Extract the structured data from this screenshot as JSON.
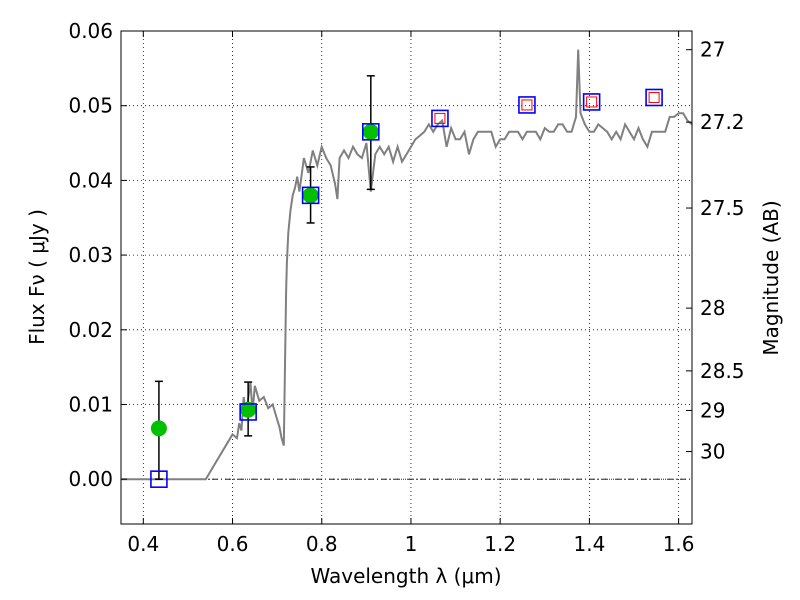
{
  "chart_data": {
    "type": "scatter",
    "title": "",
    "xlabel": "Wavelength  λ (μm)",
    "ylabel": "Flux  Fν  ( μJy )",
    "y2label": "Magnitude (AB)",
    "xlim": [
      0.35,
      1.63
    ],
    "ylim": [
      -0.006,
      0.06
    ],
    "grid": true,
    "x_ticks": [
      0.4,
      0.6,
      0.8,
      1.0,
      1.2,
      1.4,
      1.6
    ],
    "x_tick_labels": [
      "0.4",
      "0.6",
      "0.8",
      "1",
      "1.2",
      "1.4",
      "1.6"
    ],
    "y_ticks": [
      0.0,
      0.01,
      0.02,
      0.03,
      0.04,
      0.05,
      0.06
    ],
    "y_tick_labels": [
      "0.00",
      "0.01",
      "0.02",
      "0.03",
      "0.04",
      "0.05",
      "0.06"
    ],
    "y2_ticks": [
      {
        "label": "27",
        "flux": 0.0575
      },
      {
        "label": "27.2",
        "flux": 0.0478
      },
      {
        "label": "27.5",
        "flux": 0.0363
      },
      {
        "label": "28",
        "flux": 0.0229
      },
      {
        "label": "28.5",
        "flux": 0.0145
      },
      {
        "label": "29",
        "flux": 0.0092
      },
      {
        "label": "30",
        "flux": 0.0037
      }
    ],
    "series": [
      {
        "kind": "line",
        "color": "#808080",
        "x": [
          0.35,
          0.54,
          0.56,
          0.58,
          0.59,
          0.6,
          0.61,
          0.615,
          0.62,
          0.625,
          0.63,
          0.64,
          0.645,
          0.65,
          0.66,
          0.67,
          0.68,
          0.69,
          0.7,
          0.705,
          0.71,
          0.715,
          0.72,
          0.722,
          0.725,
          0.73,
          0.735,
          0.74,
          0.745,
          0.75,
          0.76,
          0.77,
          0.78,
          0.79,
          0.8,
          0.81,
          0.82,
          0.83,
          0.835,
          0.84,
          0.85,
          0.86,
          0.87,
          0.88,
          0.89,
          0.9,
          0.91,
          0.92,
          0.93,
          0.94,
          0.95,
          0.96,
          0.97,
          0.98,
          0.99,
          1.0,
          1.01,
          1.02,
          1.03,
          1.04,
          1.05,
          1.06,
          1.07,
          1.08,
          1.09,
          1.1,
          1.11,
          1.12,
          1.13,
          1.14,
          1.15,
          1.16,
          1.17,
          1.18,
          1.19,
          1.2,
          1.21,
          1.22,
          1.23,
          1.24,
          1.25,
          1.26,
          1.27,
          1.28,
          1.29,
          1.3,
          1.31,
          1.32,
          1.33,
          1.34,
          1.35,
          1.36,
          1.37,
          1.375,
          1.38,
          1.39,
          1.4,
          1.41,
          1.42,
          1.43,
          1.44,
          1.45,
          1.46,
          1.47,
          1.48,
          1.49,
          1.5,
          1.51,
          1.52,
          1.53,
          1.54,
          1.55,
          1.56,
          1.57,
          1.58,
          1.59,
          1.6,
          1.61,
          1.62,
          1.63
        ],
        "y": [
          0.0,
          0.0,
          0.002,
          0.004,
          0.005,
          0.006,
          0.0055,
          0.0075,
          0.0065,
          0.011,
          0.0085,
          0.013,
          0.009,
          0.0125,
          0.0105,
          0.011,
          0.0095,
          0.01,
          0.008,
          0.007,
          0.0055,
          0.0045,
          0.025,
          0.029,
          0.033,
          0.036,
          0.038,
          0.039,
          0.0405,
          0.0385,
          0.043,
          0.041,
          0.044,
          0.042,
          0.0445,
          0.043,
          0.042,
          0.0395,
          0.0375,
          0.043,
          0.044,
          0.043,
          0.0445,
          0.0435,
          0.043,
          0.045,
          0.0385,
          0.0435,
          0.0445,
          0.0435,
          0.0445,
          0.0425,
          0.0445,
          0.0425,
          0.0435,
          0.0445,
          0.0455,
          0.046,
          0.0465,
          0.0475,
          0.0465,
          0.0475,
          0.048,
          0.0445,
          0.047,
          0.0455,
          0.0455,
          0.0465,
          0.0435,
          0.0455,
          0.0465,
          0.0465,
          0.0465,
          0.0465,
          0.0445,
          0.0455,
          0.0455,
          0.0465,
          0.0465,
          0.0465,
          0.0455,
          0.0465,
          0.0465,
          0.0465,
          0.0455,
          0.047,
          0.0465,
          0.0465,
          0.0475,
          0.0475,
          0.0465,
          0.0465,
          0.0485,
          0.0575,
          0.049,
          0.0475,
          0.0465,
          0.0465,
          0.0475,
          0.047,
          0.0465,
          0.0455,
          0.0465,
          0.0455,
          0.0475,
          0.0465,
          0.0455,
          0.047,
          0.0455,
          0.0445,
          0.0465,
          0.0465,
          0.0465,
          0.0465,
          0.0485,
          0.0485,
          0.049,
          0.049,
          0.048,
          0.0475
        ]
      },
      {
        "kind": "points",
        "marker": "circle",
        "color": "#00c000",
        "x": [
          0.435,
          0.635,
          0.775,
          0.91
        ],
        "y": [
          0.0068,
          0.0093,
          0.038,
          0.0465
        ],
        "yerr_low": [
          0.0068,
          0.0035,
          0.0037,
          0.0077
        ],
        "yerr_high": [
          0.0063,
          0.0037,
          0.0038,
          0.0075
        ]
      },
      {
        "kind": "points",
        "marker": "square",
        "color": "#0000ff",
        "x": [
          0.435,
          0.635,
          0.775,
          0.91,
          1.065,
          1.26,
          1.405,
          1.545
        ],
        "y": [
          0.0,
          0.009,
          0.038,
          0.0465,
          0.0483,
          0.0501,
          0.0505,
          0.0511
        ]
      },
      {
        "kind": "points",
        "marker": "square-small",
        "color": "#ff0000",
        "x": [
          1.065,
          1.26,
          1.405,
          1.545
        ],
        "y": [
          0.0483,
          0.0501,
          0.0505,
          0.0511
        ]
      }
    ],
    "hline_y": 0.0
  }
}
